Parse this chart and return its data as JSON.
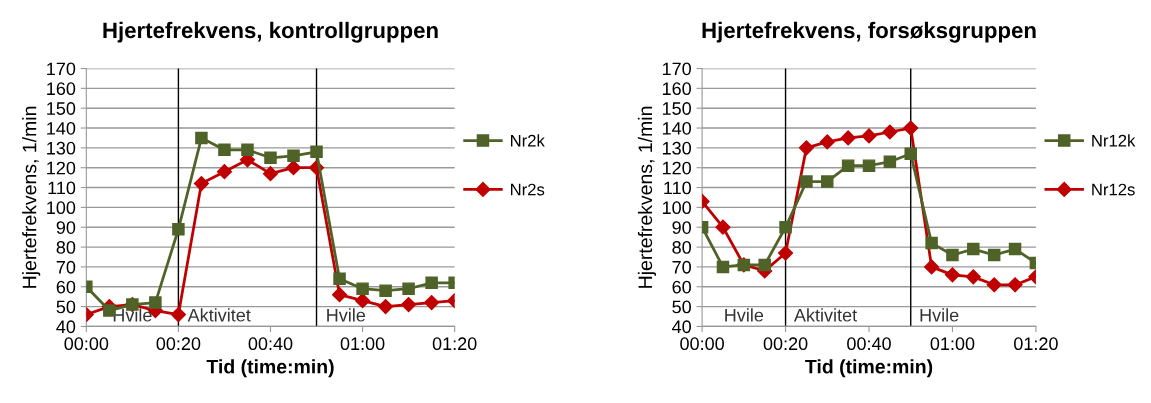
{
  "chart_data": [
    {
      "type": "line",
      "title": "Hjertefrekvens, kontrollgruppen",
      "xlabel": "Tid (time:min)",
      "ylabel": "Hjertefrekvens, 1/min",
      "x": [
        0,
        5,
        10,
        15,
        20,
        25,
        30,
        35,
        40,
        45,
        50,
        55,
        60,
        65,
        70,
        75,
        80
      ],
      "series": [
        {
          "name": "Nr2k",
          "color": "#4f6228",
          "marker": "square",
          "values": [
            60,
            48,
            51,
            52,
            89,
            135,
            129,
            129,
            125,
            126,
            128,
            64,
            59,
            58,
            59,
            62,
            62
          ]
        },
        {
          "name": "Nr2s",
          "color": "#c00000",
          "marker": "diamond",
          "values": [
            46,
            50,
            51,
            48,
            46,
            112,
            118,
            124,
            117,
            120,
            120,
            56,
            53,
            50,
            51,
            52,
            53
          ]
        }
      ],
      "xlim": [
        0,
        80
      ],
      "xticks": [
        {
          "value": 0,
          "label": "00:00"
        },
        {
          "value": 20,
          "label": "00:20"
        },
        {
          "value": 40,
          "label": "00:40"
        },
        {
          "value": 60,
          "label": "01:00"
        },
        {
          "value": 80,
          "label": "01:20"
        }
      ],
      "ylim": [
        40,
        170
      ],
      "yticks": [
        40,
        50,
        60,
        70,
        80,
        90,
        100,
        110,
        120,
        130,
        140,
        150,
        160,
        170
      ],
      "ref_lines": [
        {
          "axis": "x",
          "value": 20,
          "color": "#000000"
        },
        {
          "axis": "x",
          "value": 50,
          "color": "#000000"
        }
      ],
      "annotations": [
        "Hvile",
        "Aktivitet",
        "Hvile"
      ],
      "grid": "y",
      "legend": "right",
      "line_style": "solid"
    },
    {
      "type": "line",
      "title": "Hjertefrekvens, forsøksgruppen",
      "xlabel": "Tid (time:min)",
      "ylabel": "Hjertefrekvens, 1/min",
      "x": [
        0,
        5,
        10,
        15,
        20,
        25,
        30,
        35,
        40,
        45,
        50,
        55,
        60,
        65,
        70,
        75,
        80
      ],
      "series": [
        {
          "name": "Nr12k",
          "color": "#4f6228",
          "marker": "square",
          "values": [
            90,
            70,
            71,
            71,
            90,
            113,
            113,
            121,
            121,
            123,
            127,
            82,
            76,
            79,
            76,
            79,
            72
          ]
        },
        {
          "name": "Nr12s",
          "color": "#c00000",
          "marker": "diamond",
          "values": [
            103,
            90,
            71,
            68,
            77,
            130,
            133,
            135,
            136,
            138,
            140,
            70,
            66,
            65,
            61,
            61,
            65
          ]
        }
      ],
      "xlim": [
        0,
        80
      ],
      "xticks": [
        {
          "value": 0,
          "label": "00:00"
        },
        {
          "value": 20,
          "label": "00:20"
        },
        {
          "value": 40,
          "label": "00:40"
        },
        {
          "value": 60,
          "label": "01:00"
        },
        {
          "value": 80,
          "label": "01:20"
        }
      ],
      "ylim": [
        40,
        170
      ],
      "yticks": [
        40,
        50,
        60,
        70,
        80,
        90,
        100,
        110,
        120,
        130,
        140,
        150,
        160,
        170
      ],
      "ref_lines": [
        {
          "axis": "x",
          "value": 20,
          "color": "#000000"
        },
        {
          "axis": "x",
          "value": 50,
          "color": "#000000"
        }
      ],
      "annotations": [
        "Hvile",
        "Aktivitet",
        "Hvile"
      ],
      "grid": "y",
      "legend": "right",
      "line_style": "solid"
    }
  ]
}
